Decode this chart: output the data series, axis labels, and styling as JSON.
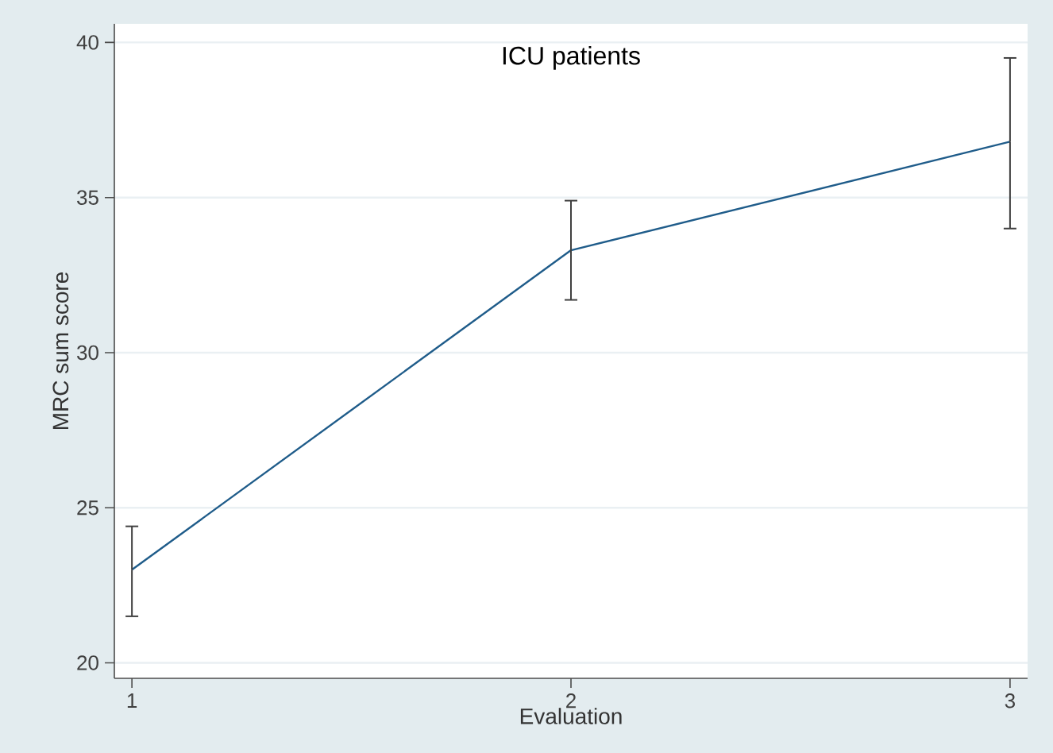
{
  "chart_data": {
    "type": "line",
    "title": "ICU patients",
    "xlabel": "Evaluation",
    "ylabel": "MRC sum score",
    "x": [
      1,
      2,
      3
    ],
    "series": [
      {
        "color": "#1f5c8a",
        "values": [
          23.0,
          33.3,
          36.8
        ],
        "errors": [
          [
            21.5,
            24.4
          ],
          [
            31.7,
            34.9
          ],
          [
            34.0,
            39.5
          ]
        ]
      }
    ],
    "xlim": [
      0.96,
      3.04
    ],
    "ylim": [
      19.5,
      40.6
    ],
    "xticks": [
      1,
      2,
      3
    ],
    "yticks": [
      20,
      25,
      30,
      35,
      40
    ],
    "grid": "y",
    "marker": "none",
    "line_style": "solid"
  }
}
